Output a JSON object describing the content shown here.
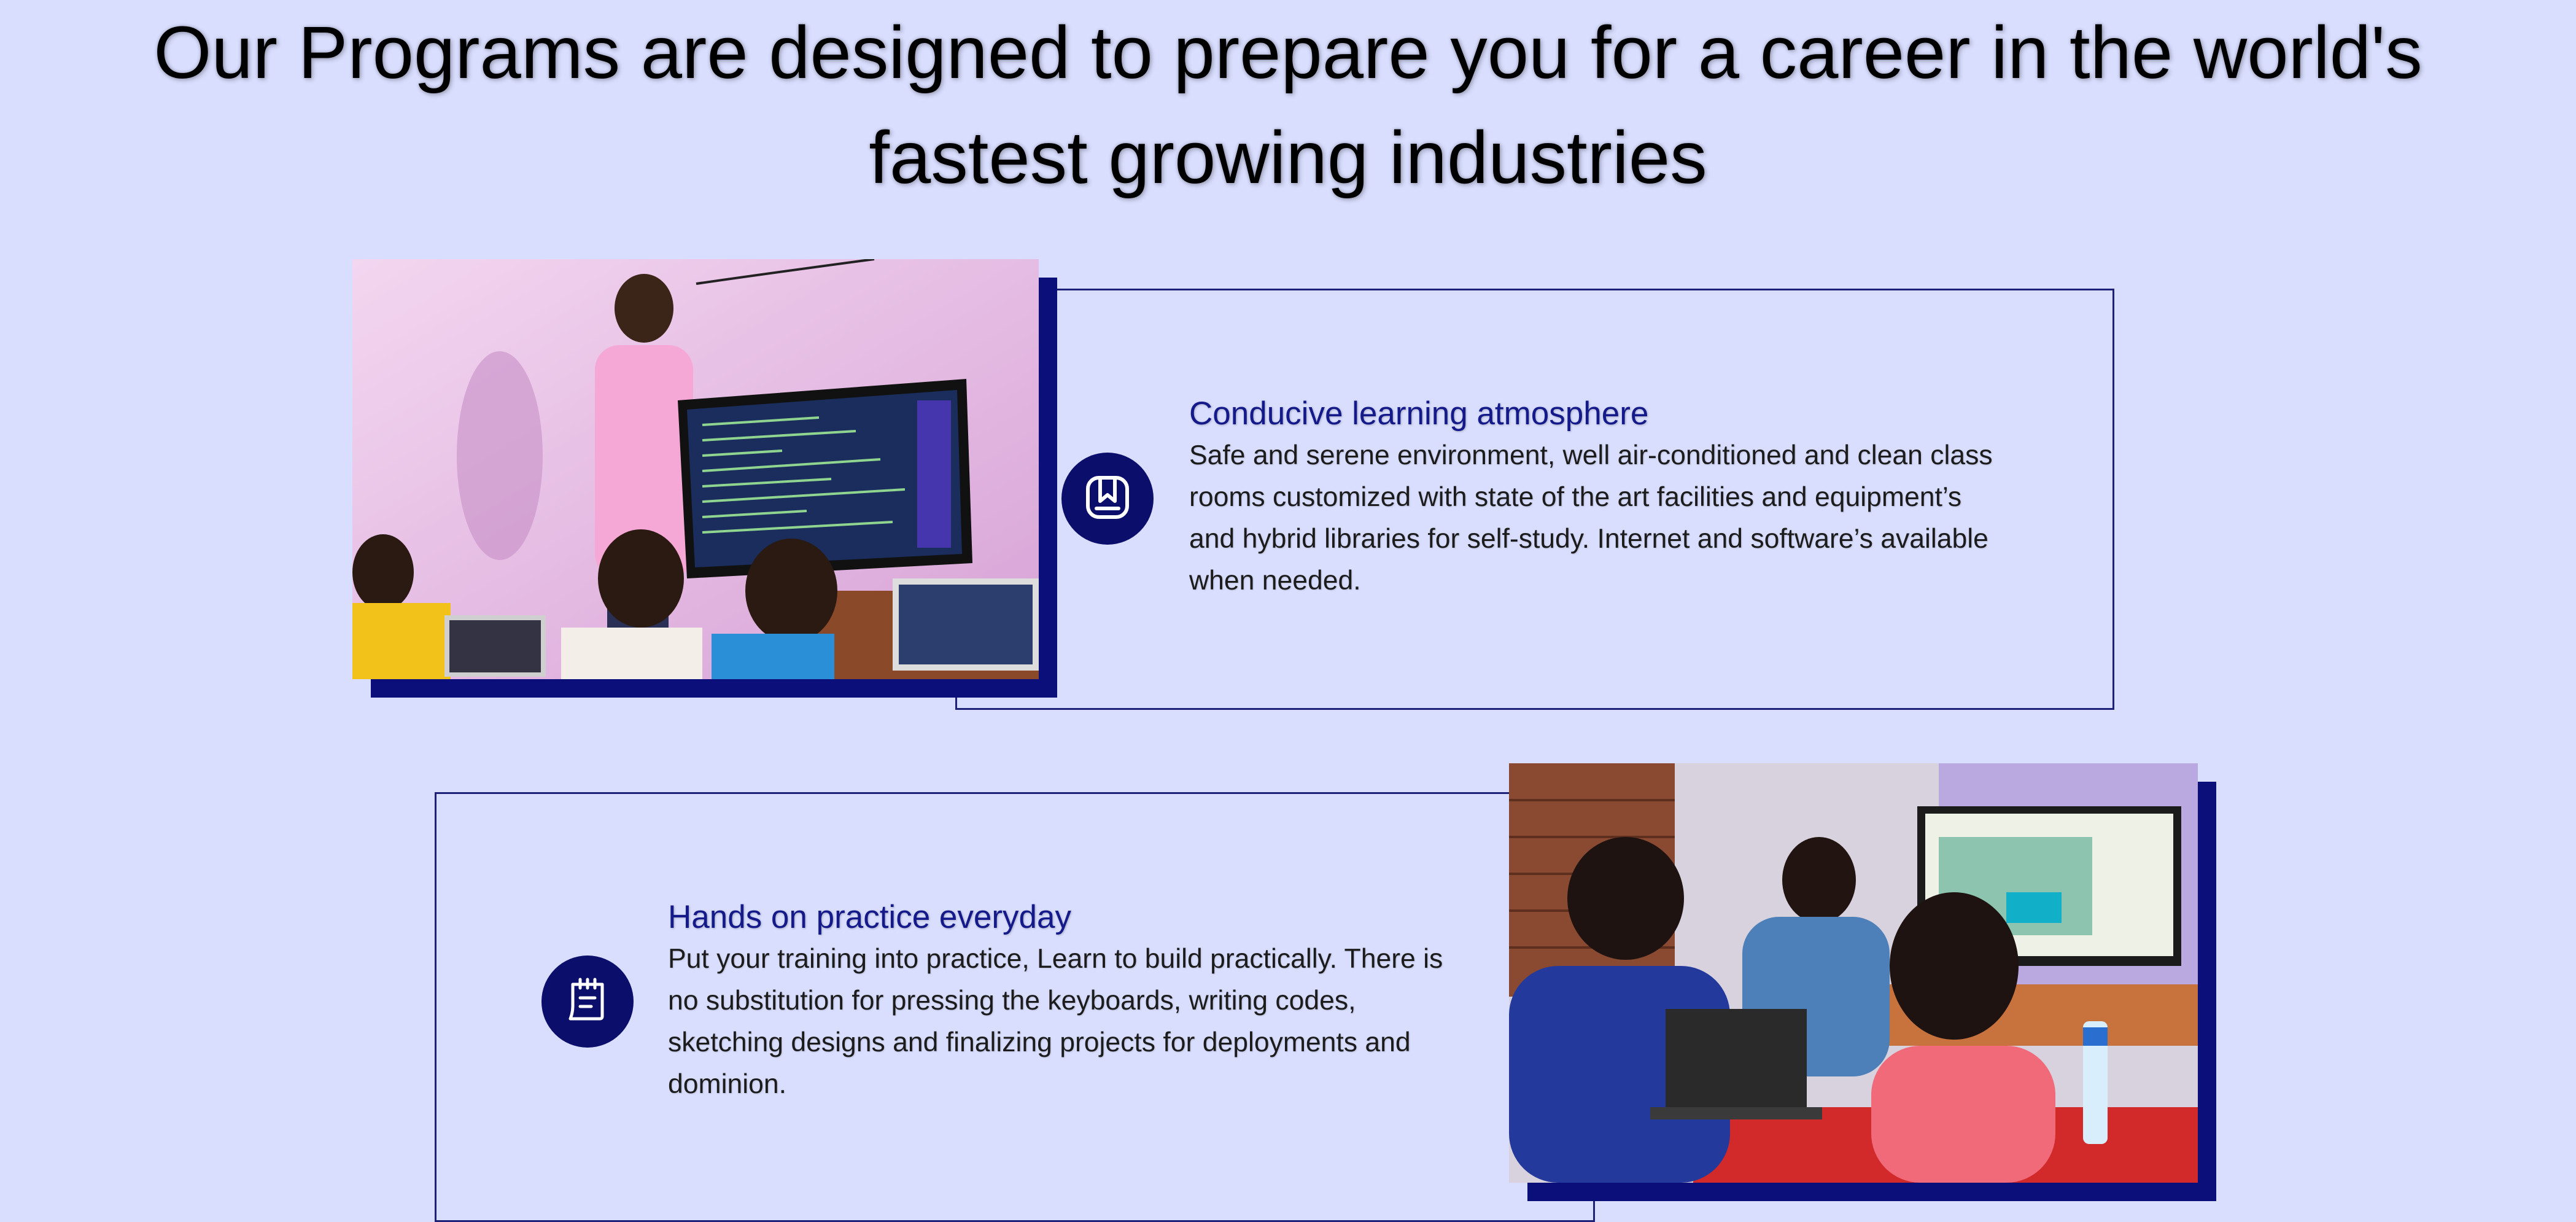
{
  "section": {
    "heading_line1": "Our Programs are designed to prepare you for a career in the world's",
    "heading_line2": "fastest growing industries"
  },
  "features": [
    {
      "title": "Conducive learning atmosphere",
      "description": "Safe and serene environment, well air-conditioned and clean class rooms customized with state of the art facilities and equipment’s and hybrid libraries for self-study. Internet and software’s available when needed.",
      "icon": "bookmark-book-icon",
      "image": "instructor-teaching-students-photo"
    },
    {
      "title": "Hands on practice everyday",
      "description": "Put your training into practice, Learn to build practically. There is no substitution for pressing the keyboards, writing codes, sketching designs and finalizing projects for deployments and dominion.",
      "icon": "notepad-calendar-icon",
      "image": "students-practicing-photo"
    }
  ],
  "colors": {
    "background": "#d9defe",
    "accent_navy": "#0b0f6b",
    "title_blue": "#141a8a",
    "frame_border": "#1d2177"
  }
}
